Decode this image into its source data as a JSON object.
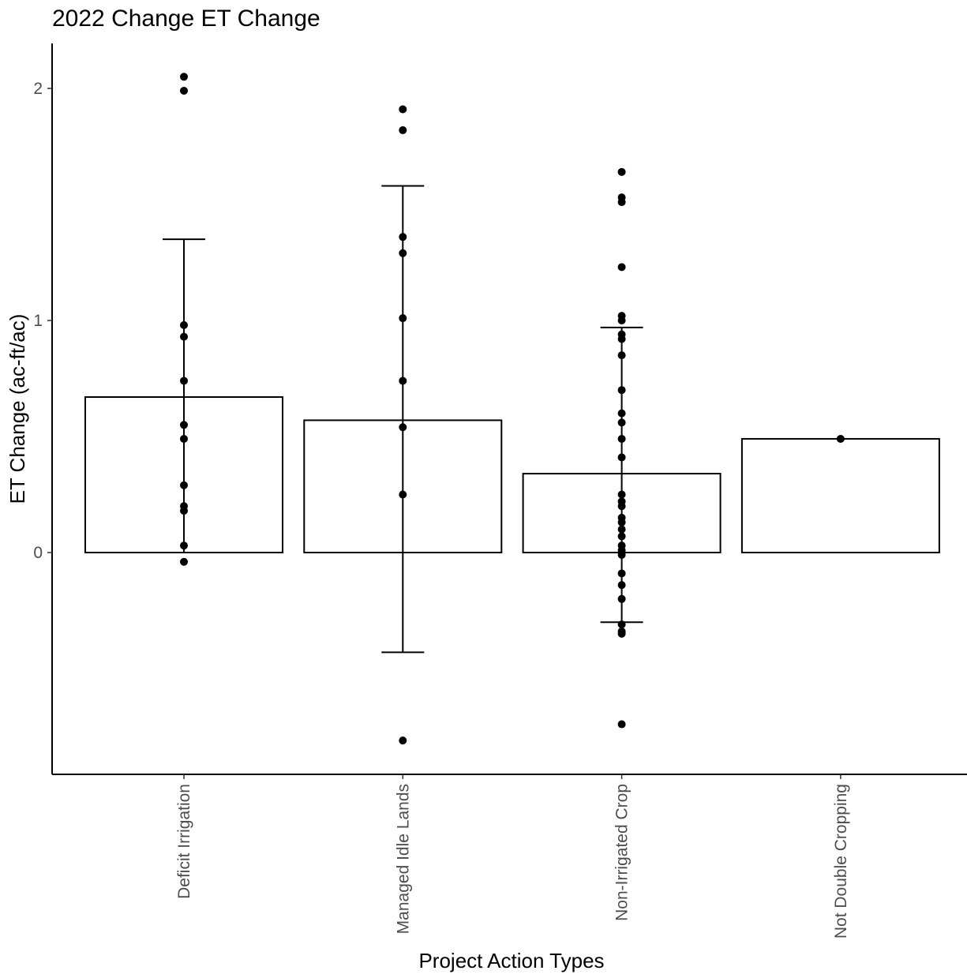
{
  "chart_data": {
    "type": "bar",
    "title": "2022 Change ET Change",
    "xlabel": "Project Action Types",
    "ylabel": "ET Change (ac-ft/ac)",
    "ylim": [
      -0.95,
      2.2
    ],
    "yticks": [
      0,
      1,
      2
    ],
    "grid": false,
    "legend": "none",
    "categories": [
      "Deficit Irrigation",
      "Managed Idle Lands",
      "Non-Irrigated Crop",
      "Not Double Cropping"
    ],
    "values": [
      0.67,
      0.57,
      0.34,
      0.49
    ],
    "error_bars": [
      {
        "low": 0.0,
        "high": 1.35
      },
      {
        "low": -0.43,
        "high": 1.58
      },
      {
        "low": -0.3,
        "high": 0.97
      },
      null
    ],
    "points": [
      [
        2.05,
        1.99,
        0.98,
        0.93,
        0.74,
        0.55,
        0.49,
        0.29,
        0.2,
        0.18,
        0.03,
        -0.04
      ],
      [
        1.91,
        1.82,
        1.36,
        1.29,
        1.01,
        0.74,
        0.54,
        0.25,
        -0.81
      ],
      [
        1.64,
        1.53,
        1.51,
        1.23,
        1.02,
        1.0,
        0.94,
        0.92,
        0.85,
        0.7,
        0.6,
        0.56,
        0.49,
        0.41,
        0.25,
        0.22,
        0.2,
        0.15,
        0.13,
        0.1,
        0.07,
        0.03,
        0.01,
        -0.01,
        -0.09,
        -0.14,
        -0.2,
        -0.31,
        -0.34,
        -0.35,
        -0.74
      ],
      [
        0.49
      ]
    ]
  }
}
